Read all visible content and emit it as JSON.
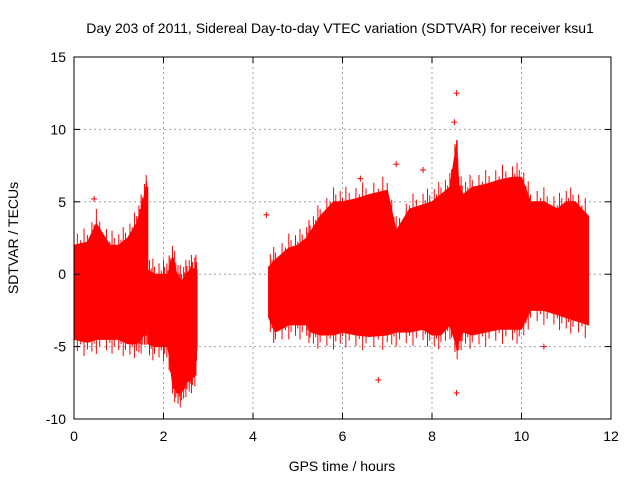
{
  "chart_data": {
    "type": "scatter",
    "title": "Day 203 of 2011, Sidereal Day-to-day VTEC variation (SDTVAR) for receiver ksu1",
    "xlabel": "GPS time / hours",
    "ylabel": "SDTVAR / TECUs",
    "xlim": [
      0,
      12
    ],
    "ylim": [
      -10,
      15
    ],
    "xticks": [
      0,
      2,
      4,
      6,
      8,
      10,
      12
    ],
    "yticks": [
      -10,
      -5,
      0,
      5,
      10,
      15
    ],
    "grid": true,
    "series_color": "#ff0000",
    "envelope": [
      {
        "name": "segment-1",
        "x": [
          0.0,
          0.3,
          0.5,
          0.8,
          1.0,
          1.2,
          1.4,
          1.5,
          1.6,
          1.65
        ],
        "upper": [
          2.0,
          2.2,
          3.5,
          2.0,
          2.0,
          2.5,
          3.5,
          4.5,
          5.8,
          6.0
        ],
        "lower": [
          -4.5,
          -4.7,
          -4.5,
          -4.5,
          -4.5,
          -4.8,
          -4.8,
          -4.5,
          -4.0,
          -3.5
        ]
      },
      {
        "name": "segment-2",
        "x": [
          1.65,
          1.8,
          2.0,
          2.1,
          2.2,
          2.3,
          2.4,
          2.5,
          2.6,
          2.7,
          2.75
        ],
        "upper": [
          0.3,
          0.0,
          0.0,
          0.0,
          1.2,
          0.0,
          -0.5,
          0.0,
          0.3,
          0.4,
          0.3
        ],
        "lower": [
          -4.8,
          -5.0,
          -5.0,
          -5.0,
          -7.5,
          -8.2,
          -8.2,
          -7.5,
          -7.3,
          -7.0,
          -5.0
        ]
      },
      {
        "name": "segment-3",
        "x": [
          4.35,
          4.5,
          4.8,
          5.0,
          5.2,
          5.3,
          5.5,
          5.8,
          6.0,
          6.3,
          6.6,
          7.0,
          7.2,
          7.5,
          7.8,
          8.0,
          8.2,
          8.4,
          8.55,
          8.6,
          8.7,
          8.9,
          9.2,
          9.5,
          9.8,
          10.0,
          10.2,
          10.5,
          10.8,
          11.0,
          11.2,
          11.5
        ],
        "upper": [
          0.5,
          1.0,
          1.8,
          2.0,
          2.5,
          3.0,
          4.0,
          5.0,
          5.0,
          5.2,
          5.5,
          5.8,
          3.0,
          4.5,
          4.8,
          5.0,
          5.5,
          6.0,
          9.0,
          6.0,
          5.5,
          6.0,
          6.2,
          6.5,
          6.7,
          6.7,
          5.0,
          5.0,
          4.5,
          5.0,
          5.0,
          4.0
        ],
        "lower": [
          -3.0,
          -4.0,
          -3.5,
          -3.5,
          -3.5,
          -4.0,
          -4.2,
          -4.2,
          -4.0,
          -4.2,
          -4.3,
          -4.2,
          -4.0,
          -4.0,
          -3.8,
          -4.2,
          -4.2,
          -3.5,
          -5.0,
          -4.5,
          -4.0,
          -4.2,
          -4.0,
          -3.8,
          -3.8,
          -3.8,
          -2.5,
          -2.5,
          -2.8,
          -3.0,
          -3.2,
          -3.5
        ]
      }
    ],
    "outliers": [
      {
        "x": 0.45,
        "y": 5.2
      },
      {
        "x": 4.3,
        "y": 4.1
      },
      {
        "x": 6.4,
        "y": 6.6
      },
      {
        "x": 6.8,
        "y": -7.3
      },
      {
        "x": 7.2,
        "y": 7.6
      },
      {
        "x": 8.55,
        "y": -8.2
      },
      {
        "x": 8.55,
        "y": 12.5
      },
      {
        "x": 10.5,
        "y": -5.0
      },
      {
        "x": 7.8,
        "y": 7.2
      },
      {
        "x": 8.5,
        "y": 10.5
      }
    ]
  }
}
